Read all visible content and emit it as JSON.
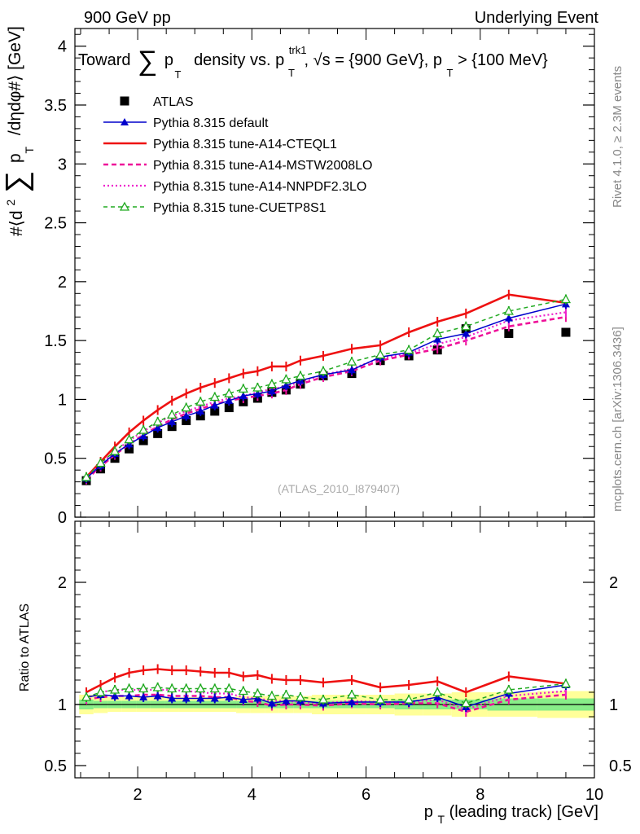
{
  "header": {
    "left": "900 GeV pp",
    "right": "Underlying Event"
  },
  "side": {
    "rivet": "Rivet 4.1.0, ≥ 2.3M events",
    "mcplots": "mcplots.cern.ch [arXiv:1306.3436]"
  },
  "watermark": "(ATLAS_2010_I879407)",
  "colors": {
    "atlas": "#000000",
    "default": "#0000cc",
    "cteql1": "#ee1111",
    "mstw": "#ee1199",
    "nnpdf": "#ee22cc",
    "cuetp8s1": "#22aa22",
    "band_yellow": "#ffff99",
    "band_green": "#88ee88"
  },
  "chart_data": [
    {
      "type": "line",
      "title": "Toward ∑ pT density vs. pT trk1, √s = {900 GeV}, pT > {100 MeV}",
      "title_parts": {
        "t1": "Toward",
        "sum": "∑",
        "p": "p",
        "sub_t": "T",
        "t2": "density vs. p",
        "sup_trk": "trk1",
        "t3": ", √s = {900 GeV}, p",
        "t4": " > {100 MeV}"
      },
      "ylabel": "#⟨d² ∑ pT /dηdφ#⟩ [GeV]",
      "ylabel_parts": {
        "a": "#⟨d",
        "sq": "2",
        "sum": "∑",
        "p": "p",
        "T": "T",
        "b": "/dηdφ#⟩ [GeV]"
      },
      "xlim": [
        0.9,
        10
      ],
      "ylim": [
        0,
        4.15
      ],
      "yticks": [
        0,
        0.5,
        1,
        1.5,
        2,
        2.5,
        3,
        3.5,
        4
      ],
      "ytick_labels": [
        "0",
        "0.5",
        "1",
        "1.5",
        "2",
        "2.5",
        "3",
        "3.5",
        "4"
      ],
      "legend_position": "top-left",
      "legend": [
        {
          "key": "atlas",
          "label": "ATLAS"
        },
        {
          "key": "default",
          "label": "Pythia 8.315 default"
        },
        {
          "key": "cteql1",
          "label": "Pythia 8.315 tune-A14-CTEQL1"
        },
        {
          "key": "mstw",
          "label": "Pythia 8.315 tune-A14-MSTW2008LO"
        },
        {
          "key": "nnpdf",
          "label": "Pythia 8.315 tune-A14-NNPDF2.3LO"
        },
        {
          "key": "cuetp8s1",
          "label": "Pythia 8.315 tune-CUETP8S1"
        }
      ],
      "x": [
        1.1,
        1.35,
        1.6,
        1.85,
        2.1,
        2.35,
        2.6,
        2.85,
        3.1,
        3.35,
        3.6,
        3.85,
        4.1,
        4.35,
        4.6,
        4.85,
        5.25,
        5.75,
        6.25,
        6.75,
        7.25,
        7.75,
        8.5,
        9.5
      ],
      "series": [
        {
          "key": "atlas",
          "name": "ATLAS",
          "values": [
            0.31,
            0.41,
            0.5,
            0.58,
            0.65,
            0.71,
            0.77,
            0.82,
            0.86,
            0.9,
            0.93,
            0.98,
            1.01,
            1.06,
            1.08,
            1.13,
            1.2,
            1.22,
            1.33,
            1.37,
            1.42,
            1.6,
            1.56,
            1.57
          ]
        },
        {
          "key": "default",
          "name": "Pythia 8.315 default",
          "values": [
            0.33,
            0.44,
            0.54,
            0.62,
            0.69,
            0.76,
            0.81,
            0.86,
            0.9,
            0.95,
            0.99,
            1.03,
            1.05,
            1.07,
            1.12,
            1.16,
            1.21,
            1.25,
            1.36,
            1.4,
            1.51,
            1.56,
            1.69,
            1.81
          ]
        },
        {
          "key": "cteql1",
          "name": "Pythia 8.315 tune-A14-CTEQL1",
          "values": [
            0.34,
            0.47,
            0.6,
            0.72,
            0.82,
            0.91,
            0.99,
            1.05,
            1.1,
            1.14,
            1.18,
            1.22,
            1.24,
            1.28,
            1.28,
            1.33,
            1.37,
            1.43,
            1.46,
            1.57,
            1.66,
            1.73,
            1.89,
            1.82
          ]
        },
        {
          "key": "mstw",
          "name": "Pythia 8.315 tune-A14-MSTW2008LO",
          "values": [
            0.32,
            0.43,
            0.53,
            0.62,
            0.7,
            0.77,
            0.83,
            0.88,
            0.92,
            0.96,
            0.99,
            1.01,
            1.03,
            1.05,
            1.08,
            1.13,
            1.19,
            1.24,
            1.33,
            1.38,
            1.43,
            1.5,
            1.62,
            1.7
          ]
        },
        {
          "key": "nnpdf",
          "name": "Pythia 8.315 tune-A14-NNPDF2.3LO",
          "values": [
            0.33,
            0.45,
            0.56,
            0.65,
            0.73,
            0.8,
            0.86,
            0.9,
            0.94,
            0.98,
            1.01,
            1.03,
            1.06,
            1.09,
            1.11,
            1.15,
            1.21,
            1.26,
            1.35,
            1.39,
            1.47,
            1.53,
            1.67,
            1.74
          ]
        },
        {
          "key": "cuetp8s1",
          "name": "Pythia 8.315 tune-CUETP8S1",
          "values": [
            0.34,
            0.46,
            0.56,
            0.66,
            0.74,
            0.81,
            0.87,
            0.93,
            0.98,
            1.02,
            1.05,
            1.09,
            1.1,
            1.13,
            1.17,
            1.2,
            1.24,
            1.32,
            1.38,
            1.42,
            1.56,
            1.62,
            1.75,
            1.85
          ]
        }
      ]
    },
    {
      "type": "line",
      "title": "",
      "ylabel": "Ratio to ATLAS",
      "xlabel": "p T (leading track) [GeV]",
      "xlabel_parts": {
        "p": "p",
        "sub": "T",
        "rest": " (leading track) [GeV]"
      },
      "xlim": [
        0.9,
        10
      ],
      "ylim": [
        0.4,
        2.5
      ],
      "xticks": [
        2,
        4,
        6,
        8,
        10
      ],
      "xtick_labels": [
        "2",
        "4",
        "6",
        "8",
        "10"
      ],
      "yticks": [
        0.5,
        1,
        2
      ],
      "ytick_labels": [
        "0.5",
        "1",
        "2"
      ],
      "band_yellow": [
        0.08,
        0.07,
        0.06,
        0.06,
        0.06,
        0.06,
        0.06,
        0.06,
        0.06,
        0.06,
        0.06,
        0.07,
        0.07,
        0.07,
        0.07,
        0.07,
        0.08,
        0.08,
        0.08,
        0.09,
        0.09,
        0.1,
        0.1,
        0.11
      ],
      "band_green": [
        0.04,
        0.03,
        0.03,
        0.03,
        0.03,
        0.03,
        0.03,
        0.03,
        0.03,
        0.03,
        0.03,
        0.03,
        0.03,
        0.03,
        0.03,
        0.03,
        0.03,
        0.03,
        0.03,
        0.04,
        0.04,
        0.04,
        0.05,
        0.05
      ],
      "series": [
        {
          "key": "default",
          "values": [
            1.06,
            1.08,
            1.07,
            1.07,
            1.06,
            1.07,
            1.05,
            1.05,
            1.05,
            1.05,
            1.06,
            1.04,
            1.05,
            1.01,
            1.03,
            1.03,
            1.01,
            1.02,
            1.02,
            1.02,
            1.06,
            0.98,
            1.09,
            1.16
          ]
        },
        {
          "key": "cteql1",
          "values": [
            1.1,
            1.16,
            1.22,
            1.26,
            1.28,
            1.29,
            1.28,
            1.28,
            1.27,
            1.26,
            1.26,
            1.23,
            1.24,
            1.21,
            1.2,
            1.2,
            1.18,
            1.2,
            1.14,
            1.16,
            1.19,
            1.1,
            1.23,
            1.17
          ]
        },
        {
          "key": "mstw",
          "values": [
            1.04,
            1.06,
            1.07,
            1.07,
            1.08,
            1.08,
            1.07,
            1.07,
            1.07,
            1.06,
            1.06,
            1.03,
            1.02,
            0.99,
            1.0,
            1.0,
            0.99,
            1.01,
            1.0,
            1.01,
            1.01,
            0.94,
            1.04,
            1.08
          ]
        },
        {
          "key": "nnpdf",
          "values": [
            1.05,
            1.1,
            1.12,
            1.12,
            1.12,
            1.12,
            1.12,
            1.11,
            1.1,
            1.09,
            1.09,
            1.06,
            1.05,
            1.03,
            1.03,
            1.02,
            1.01,
            1.03,
            1.02,
            1.02,
            1.04,
            0.96,
            1.07,
            1.11
          ]
        },
        {
          "key": "cuetp8s1",
          "values": [
            1.06,
            1.1,
            1.12,
            1.13,
            1.13,
            1.14,
            1.13,
            1.13,
            1.13,
            1.13,
            1.13,
            1.11,
            1.09,
            1.07,
            1.08,
            1.06,
            1.04,
            1.08,
            1.04,
            1.04,
            1.1,
            1.01,
            1.12,
            1.17
          ]
        }
      ]
    }
  ]
}
